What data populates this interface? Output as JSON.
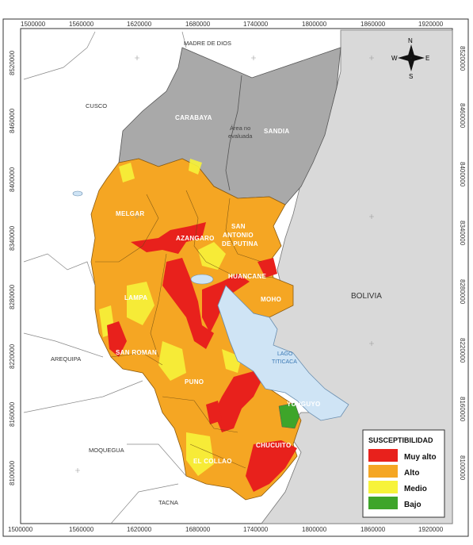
{
  "axes": {
    "x_ticks": [
      "1500000",
      "1560000",
      "1620000",
      "1680000",
      "1740000",
      "1800000",
      "1860000",
      "1920000"
    ],
    "y_ticks": [
      "8520000",
      "8460000",
      "8400000",
      "8340000",
      "8280000",
      "8220000",
      "8160000",
      "8100000"
    ]
  },
  "regions": {
    "madre_de_dios": "MADRE DE DIOS",
    "cusco": "CUSCO",
    "arequipa": "AREQUIPA",
    "moquegua": "MOQUEGUA",
    "tacna": "TACNA",
    "bolivia": "BOLIVIA"
  },
  "provinces": {
    "carabaya": "CARABAYA",
    "sandia": "SANDIA",
    "area_no_evaluada_1": "Área no",
    "area_no_evaluada_2": "evaluada",
    "melgar": "MELGAR",
    "azangaro": "AZANGARO",
    "san_antonio_1": "SAN",
    "san_antonio_2": "ANTONIO",
    "san_antonio_3": "DE PUTINA",
    "huancane": "HUANCANE",
    "moho": "MOHO",
    "lampa": "LAMPA",
    "san_roman": "SAN ROMAN",
    "puno": "PUNO",
    "yunguyo": "YUNGUYO",
    "chucuito": "CHUCUITO",
    "el_collao": "EL COLLAO"
  },
  "lake": {
    "line1": "LAGO",
    "line2": "TITICACA"
  },
  "north_arrow": {
    "n": "N",
    "s": "S",
    "e": "E",
    "w": "W"
  },
  "legend": {
    "title": "SUSCEPTIBILIDAD",
    "items": [
      {
        "label": "Muy alto",
        "color": "#e8211c"
      },
      {
        "label": "Alto",
        "color": "#f5a623"
      },
      {
        "label": "Medio",
        "color": "#f7f33a"
      },
      {
        "label": "Bajo",
        "color": "#3ea52a"
      }
    ]
  },
  "colors": {
    "not_evaluated": "#a9a9a9",
    "outside": "#d9d9d9",
    "lake": "#cfe4f5",
    "background": "#ffffff"
  }
}
